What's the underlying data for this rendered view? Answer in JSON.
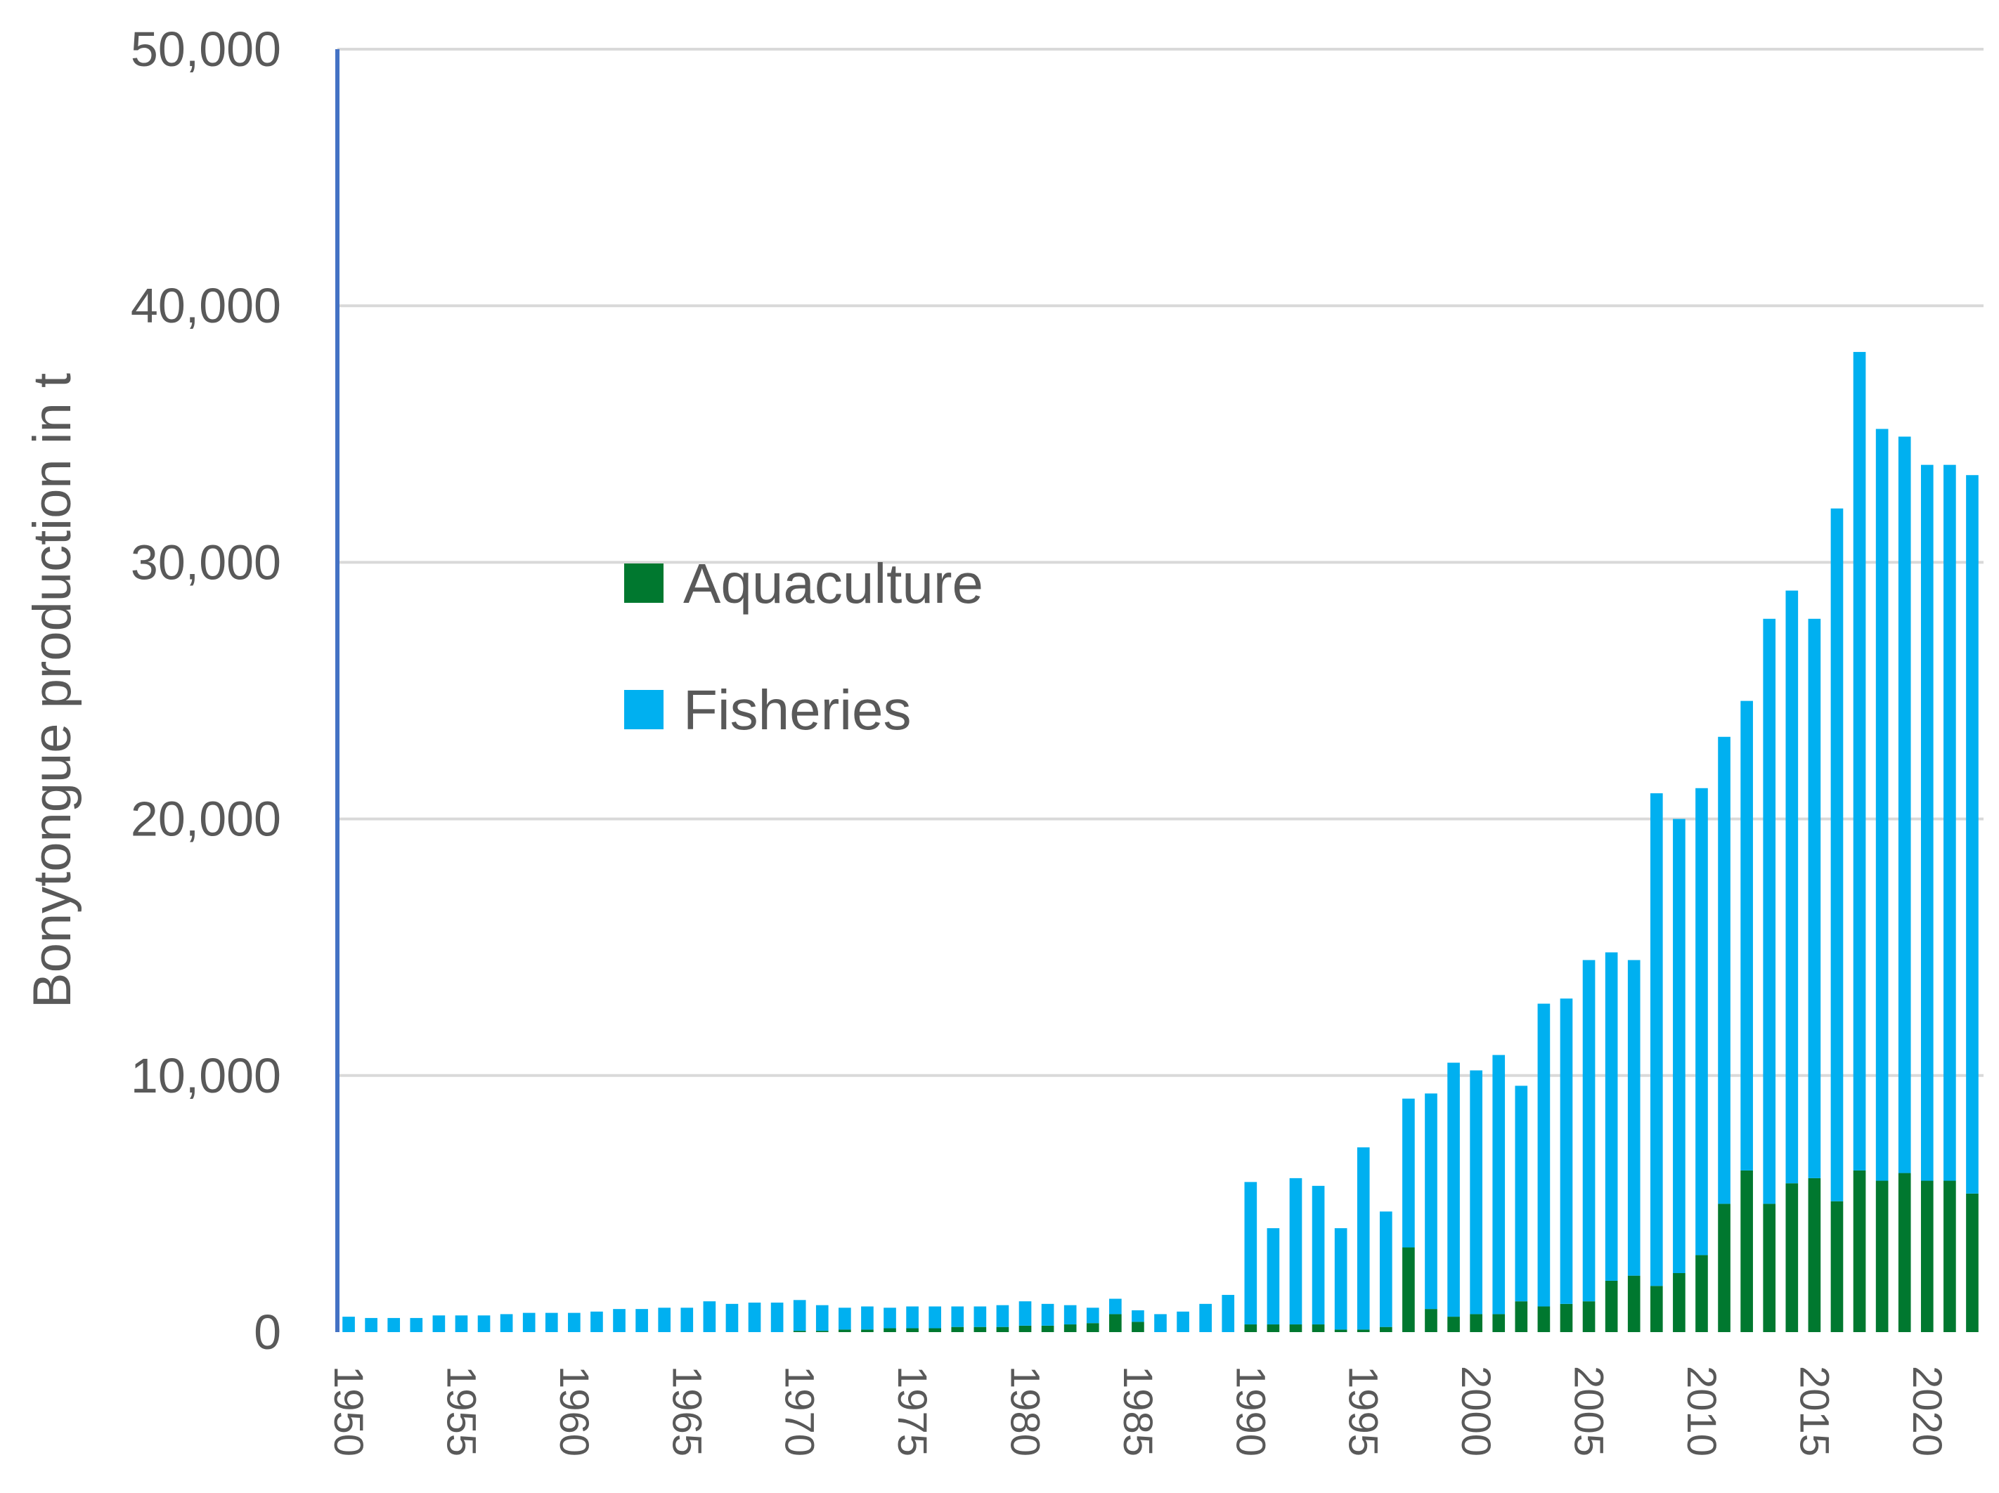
{
  "chart_data": {
    "type": "bar",
    "stacked": true,
    "title": "",
    "xlabel": "",
    "ylabel": "Bonytongue production in t",
    "ylim": [
      0,
      50000
    ],
    "yticks": [
      0,
      10000,
      20000,
      30000,
      40000,
      50000
    ],
    "ytick_labels": [
      "0",
      "10,000",
      "20,000",
      "30,000",
      "40,000",
      "50,000"
    ],
    "xtick_labels": [
      "1950",
      "1955",
      "1960",
      "1965",
      "1970",
      "1975",
      "1980",
      "1985",
      "1990",
      "1995",
      "2000",
      "2005",
      "2010",
      "2015",
      "2020"
    ],
    "grid": true,
    "legend_position": "center-left",
    "categories": [
      1950,
      1951,
      1952,
      1953,
      1954,
      1955,
      1956,
      1957,
      1958,
      1959,
      1960,
      1961,
      1962,
      1963,
      1964,
      1965,
      1966,
      1967,
      1968,
      1969,
      1970,
      1971,
      1972,
      1973,
      1974,
      1975,
      1976,
      1977,
      1978,
      1979,
      1980,
      1981,
      1982,
      1983,
      1984,
      1985,
      1986,
      1987,
      1988,
      1989,
      1990,
      1991,
      1992,
      1993,
      1994,
      1995,
      1996,
      1997,
      1998,
      1999,
      2000,
      2001,
      2002,
      2003,
      2004,
      2005,
      2006,
      2007,
      2008,
      2009,
      2010,
      2011,
      2012,
      2013,
      2014,
      2015,
      2016,
      2017,
      2018,
      2019,
      2020,
      2021,
      2022
    ],
    "series": [
      {
        "name": "Aquaculture",
        "color": "#00782f",
        "values": [
          0,
          0,
          0,
          0,
          0,
          0,
          0,
          0,
          0,
          0,
          0,
          0,
          0,
          0,
          0,
          0,
          0,
          0,
          0,
          0,
          50,
          50,
          100,
          100,
          150,
          150,
          150,
          200,
          200,
          200,
          250,
          250,
          300,
          350,
          700,
          400,
          0,
          0,
          0,
          0,
          300,
          300,
          300,
          300,
          100,
          100,
          200,
          3300,
          900,
          600,
          700,
          700,
          1200,
          1000,
          1100,
          1200,
          2000,
          2200,
          1800,
          2300,
          3000,
          5000,
          6300,
          5000,
          5800,
          6000,
          5100,
          6300,
          5900,
          6200,
          5900,
          5900,
          5400
        ]
      },
      {
        "name": "Fisheries",
        "color": "#00b0f0",
        "values": [
          600,
          550,
          550,
          550,
          650,
          650,
          650,
          700,
          750,
          750,
          750,
          800,
          900,
          900,
          950,
          950,
          1200,
          1100,
          1150,
          1150,
          1200,
          1000,
          850,
          900,
          800,
          850,
          850,
          800,
          800,
          850,
          950,
          850,
          750,
          600,
          600,
          450,
          700,
          800,
          1100,
          1450,
          5550,
          3750,
          5700,
          5400,
          3950,
          7100,
          4500,
          5800,
          8400,
          9900,
          9500,
          10100,
          8400,
          11800,
          11900,
          13300,
          12800,
          12300,
          19200,
          17700,
          18200,
          18200,
          18300,
          22800,
          23100,
          21800,
          27000,
          31900,
          29300,
          28700,
          27900,
          27900,
          28000
        ]
      }
    ]
  }
}
